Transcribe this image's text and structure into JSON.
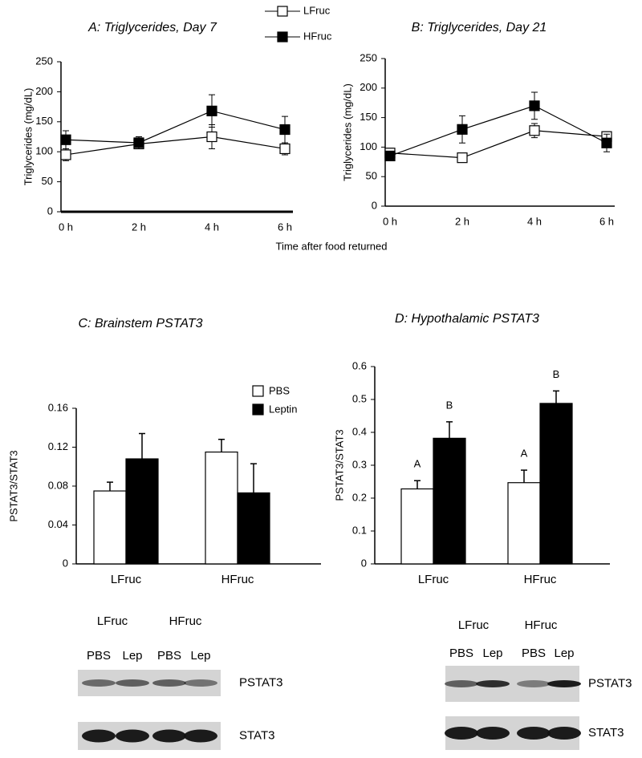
{
  "chart_data": [
    {
      "type": "line",
      "title": "A: Triglycerides, Day 7",
      "ylabel": "Triglycerides (mg/dL)",
      "xlabel": "Time after food returned",
      "categories": [
        "0 h",
        "2 h",
        "4 h",
        "6 h"
      ],
      "ylim": [
        0,
        250
      ],
      "yticks": [
        0,
        50,
        100,
        150,
        200,
        250
      ],
      "series": [
        {
          "name": "LFruc",
          "color": "#ffffff",
          "values": [
            95,
            113,
            125,
            105
          ],
          "errors": [
            10,
            8,
            20,
            10
          ]
        },
        {
          "name": "HFruc",
          "color": "#000000",
          "values": [
            120,
            115,
            168,
            137
          ],
          "errors": [
            15,
            10,
            27,
            22
          ]
        }
      ]
    },
    {
      "type": "line",
      "title": "B: Triglycerides, Day 21",
      "ylabel": "Triglycerides (mg/dL)",
      "categories": [
        "0 h",
        "2 h",
        "4 h",
        "6 h"
      ],
      "ylim": [
        0,
        250
      ],
      "yticks": [
        0,
        50,
        100,
        150,
        200,
        250
      ],
      "series": [
        {
          "color": "#ffffff",
          "values": [
            90,
            82,
            128,
            118
          ],
          "errors": [
            8,
            6,
            12,
            8
          ]
        },
        {
          "color": "#000000",
          "values": [
            85,
            130,
            170,
            107
          ],
          "errors": [
            8,
            23,
            23,
            15
          ]
        }
      ]
    },
    {
      "type": "bar",
      "title": "C: Brainstem PSTAT3",
      "ylabel": "PSTAT3/STAT3",
      "categories": [
        "LFruc",
        "HFruc"
      ],
      "ylim": [
        0,
        0.16
      ],
      "yticks": [
        0,
        0.04,
        0.08,
        0.12,
        0.16
      ],
      "series": [
        {
          "name": "PBS",
          "color": "#ffffff",
          "values": [
            0.075,
            0.115
          ],
          "errors": [
            0.009,
            0.013
          ]
        },
        {
          "name": "Leptin",
          "color": "#000000",
          "values": [
            0.108,
            0.073
          ],
          "errors": [
            0.026,
            0.03
          ]
        }
      ]
    },
    {
      "type": "bar",
      "title": "D: Hypothalamic  PSTAT3",
      "ylabel": "PSTAT3/STAT3",
      "categories": [
        "LFruc",
        "HFruc"
      ],
      "ylim": [
        0,
        0.6
      ],
      "yticks": [
        0,
        0.1,
        0.2,
        0.3,
        0.4,
        0.5,
        0.6
      ],
      "series": [
        {
          "color": "#ffffff",
          "values": [
            0.228,
            0.247
          ],
          "errors": [
            0.025,
            0.038
          ],
          "annotations": [
            "A",
            "A"
          ]
        },
        {
          "color": "#000000",
          "values": [
            0.382,
            0.488
          ],
          "errors": [
            0.05,
            0.038
          ],
          "annotations": [
            "B",
            "B"
          ]
        }
      ]
    }
  ],
  "blots": [
    {
      "groups": [
        "LFruc",
        "HFruc"
      ],
      "lanes": [
        "PBS",
        "Lep",
        "PBS",
        "Lep"
      ],
      "rows": [
        "PSTAT3",
        "STAT3"
      ]
    },
    {
      "groups": [
        "LFruc",
        "HFruc"
      ],
      "lanes": [
        "PBS",
        "Lep",
        "PBS",
        "Lep"
      ],
      "rows": [
        "PSTAT3",
        "STAT3"
      ]
    }
  ]
}
